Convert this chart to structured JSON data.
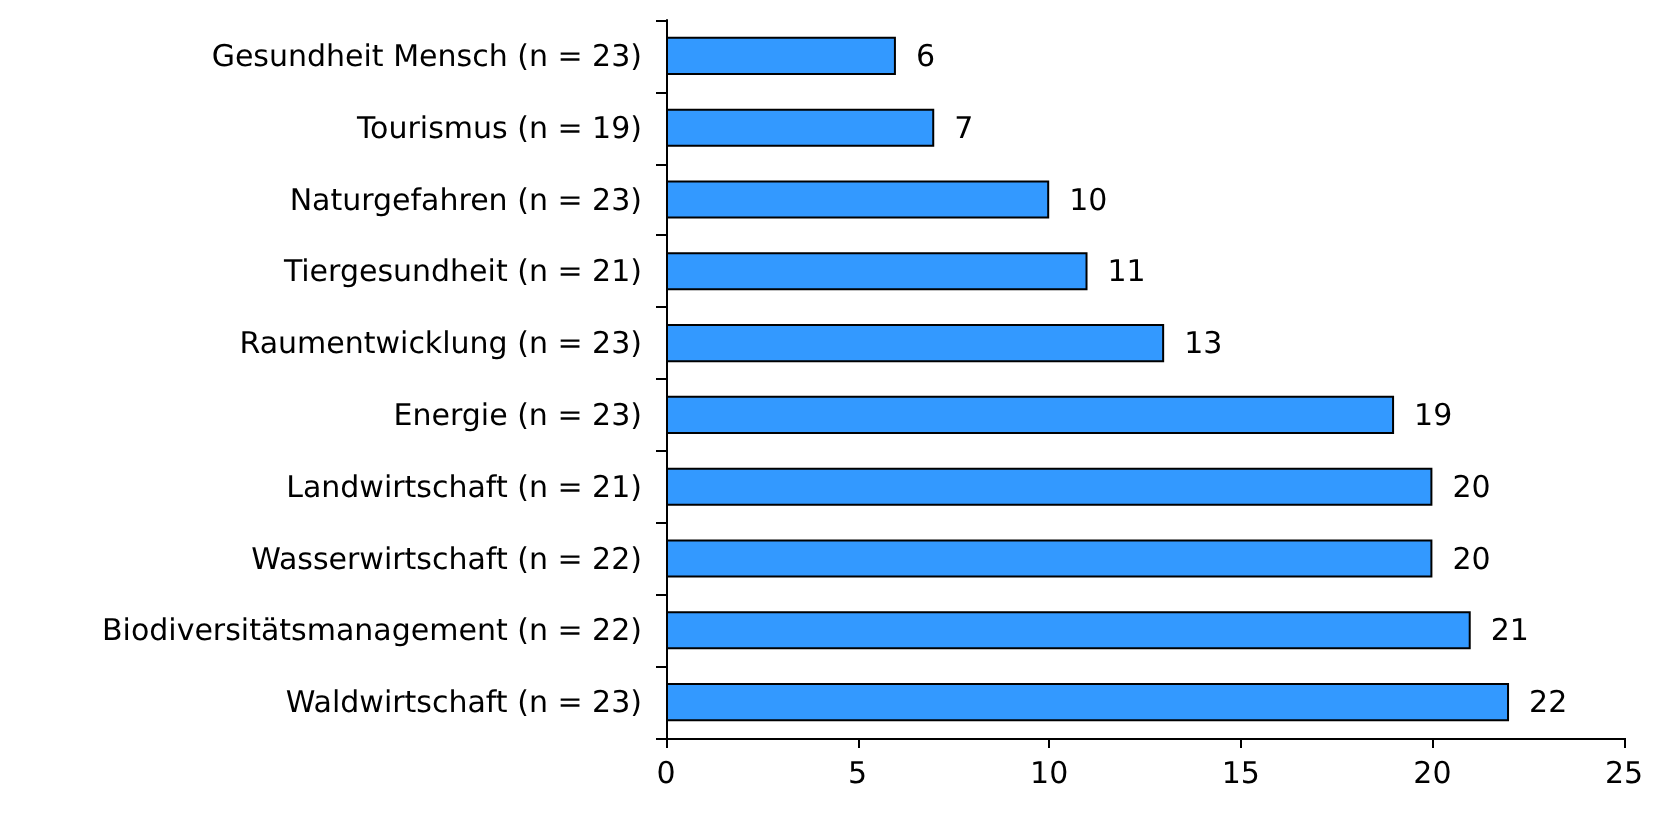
{
  "chart_data": {
    "type": "bar",
    "orientation": "horizontal",
    "categories": [
      "Gesundheit Mensch (n = 23)",
      "Tourismus (n = 19)",
      "Naturgefahren (n = 23)",
      "Tiergesundheit (n = 21)",
      "Raumentwicklung (n = 23)",
      "Energie (n = 23)",
      "Landwirtschaft (n = 21)",
      "Wasserwirtschaft (n = 22)",
      "Biodiversitätsmanagement (n = 22)",
      "Waldwirtschaft (n = 23)"
    ],
    "values": [
      6,
      7,
      10,
      11,
      13,
      19,
      20,
      20,
      21,
      22
    ],
    "color": "#3399ff",
    "xlim": [
      0,
      25
    ],
    "xticks": [
      0,
      5,
      10,
      15,
      20,
      25
    ],
    "data_labels": true,
    "grid": false
  }
}
